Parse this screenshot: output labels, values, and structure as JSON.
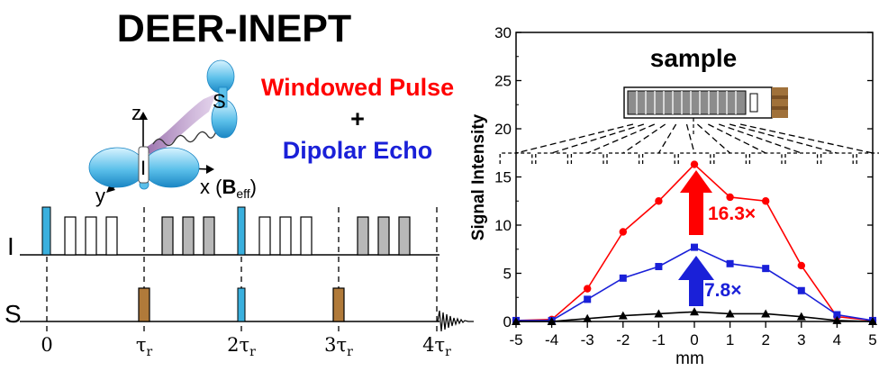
{
  "left_panel": {
    "title": "DEER-INEPT",
    "windowed_pulse": "Windowed Pulse",
    "plus": "+",
    "dipolar_echo": "Dipolar Echo",
    "colors": {
      "red": "#ff0000",
      "blue": "#1a20d8"
    },
    "axis_labels": {
      "z": "z",
      "y": "y",
      "x_prefix": "x (",
      "b": "B",
      "b_sub": "eff",
      "x_suffix": ")"
    },
    "spin_labels": {
      "I": "I",
      "S": "S"
    },
    "channels": [
      "I",
      "S"
    ],
    "time_labels": [
      {
        "coef": "0",
        "tau": "",
        "sub": ""
      },
      {
        "coef": "",
        "tau": "τ",
        "sub": "r"
      },
      {
        "coef": "2",
        "tau": "τ",
        "sub": "r"
      },
      {
        "coef": "3",
        "tau": "τ",
        "sub": "r"
      },
      {
        "coef": "4",
        "tau": "τ",
        "sub": "r"
      }
    ]
  },
  "chart_data": {
    "type": "line",
    "title": "sample",
    "xlabel": "mm",
    "ylabel": "Signal Intensity",
    "xlim": [
      -5,
      5
    ],
    "ylim": [
      0,
      30
    ],
    "x_ticks": [
      -5,
      -4,
      -3,
      -2,
      -1,
      0,
      1,
      2,
      3,
      4,
      5
    ],
    "y_ticks": [
      0,
      5,
      10,
      15,
      20,
      25,
      30
    ],
    "x": [
      -5,
      -4,
      -3,
      -2,
      -1,
      0,
      1,
      2,
      3,
      4,
      5
    ],
    "series": [
      {
        "color": "#ff0000",
        "marker": "circle",
        "values": [
          0.1,
          0.2,
          3.4,
          9.3,
          12.5,
          16.3,
          12.9,
          12.5,
          5.8,
          0.5,
          0.1
        ]
      },
      {
        "color": "#1a20d8",
        "marker": "square",
        "values": [
          0.1,
          0.1,
          2.3,
          4.5,
          5.7,
          7.7,
          6.0,
          5.5,
          3.2,
          0.7,
          0.1
        ]
      },
      {
        "color": "#000000",
        "marker": "triangle",
        "values": [
          0.0,
          0.0,
          0.3,
          0.6,
          0.8,
          1.0,
          0.8,
          0.8,
          0.5,
          0.1,
          0.0
        ]
      }
    ],
    "annotations": [
      {
        "text": "16.3×",
        "color": "#ff0000"
      },
      {
        "text": "7.8×",
        "color": "#1a20d8"
      }
    ]
  }
}
